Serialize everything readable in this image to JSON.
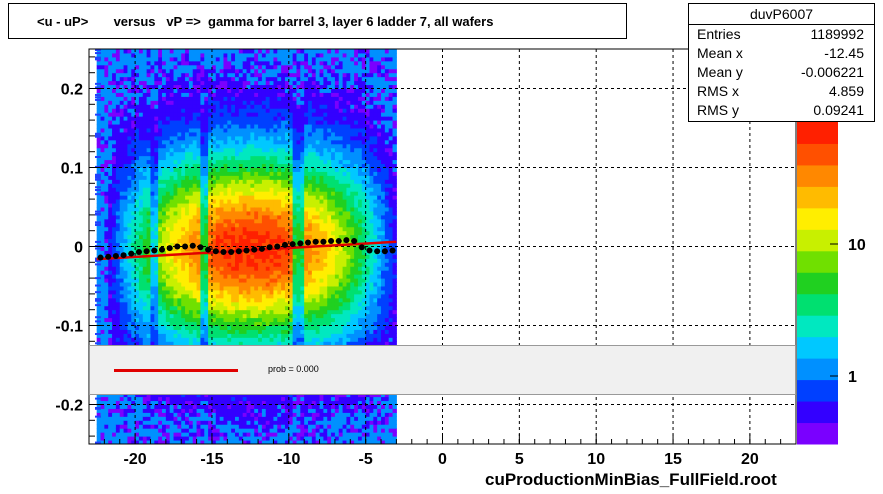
{
  "title": "<u - uP>       versus   vP =>  gamma for barrel 3, layer 6 ladder 7, all wafers",
  "stats": {
    "name": "duvP6007",
    "rows": [
      {
        "label": "Entries",
        "value": "1189992"
      },
      {
        "label": "Mean x",
        "value": "-12.45"
      },
      {
        "label": "Mean y",
        "value": "-0.006221"
      },
      {
        "label": "RMS x",
        "value": "4.859"
      },
      {
        "label": "RMS y",
        "value": "0.09241"
      }
    ]
  },
  "fit_legend": {
    "prob_text": "prob = 0.000"
  },
  "footer": "cuProductionMinBias_FullField.root",
  "chart_data": {
    "type": "heatmap",
    "xlim": [
      -23,
      23
    ],
    "ylim": [
      -0.25,
      0.25
    ],
    "x_ticks": [
      -20,
      -15,
      -10,
      -5,
      0,
      5,
      10,
      15,
      20
    ],
    "y_ticks": [
      -0.2,
      -0.1,
      0,
      0.1,
      0.2
    ],
    "z_scale": "log",
    "z_ticks": [
      "1",
      "10"
    ],
    "grid": true,
    "profile_points": {
      "x": [
        -22.25,
        -21.75,
        -21.25,
        -20.75,
        -20.25,
        -19.75,
        -19.25,
        -18.75,
        -18.25,
        -17.75,
        -17.25,
        -16.75,
        -16.25,
        -15.75,
        -15.25,
        -14.75,
        -14.25,
        -13.75,
        -13.25,
        -12.75,
        -12.25,
        -11.75,
        -11.25,
        -10.75,
        -10.25,
        -9.75,
        -9.25,
        -8.75,
        -8.25,
        -7.75,
        -7.25,
        -6.75,
        -6.25,
        -5.75,
        -5.25,
        -4.75,
        -4.25,
        -3.75,
        -3.25
      ],
      "y": [
        -0.014,
        -0.013,
        -0.012,
        -0.011,
        -0.009,
        -0.007,
        -0.006,
        -0.005,
        -0.004,
        -0.002,
        0.0,
        0.0,
        0.001,
        -0.001,
        -0.004,
        -0.006,
        -0.007,
        -0.007,
        -0.006,
        -0.005,
        -0.004,
        -0.003,
        -0.001,
        0.0,
        0.002,
        0.003,
        0.004,
        0.005,
        0.006,
        0.006,
        0.007,
        0.007,
        0.008,
        0.007,
        -0.001,
        -0.005,
        -0.006,
        -0.006,
        -0.005
      ]
    },
    "fit_line": {
      "x": [
        -22.5,
        -3.0
      ],
      "y": [
        -0.016,
        0.006
      ]
    }
  }
}
